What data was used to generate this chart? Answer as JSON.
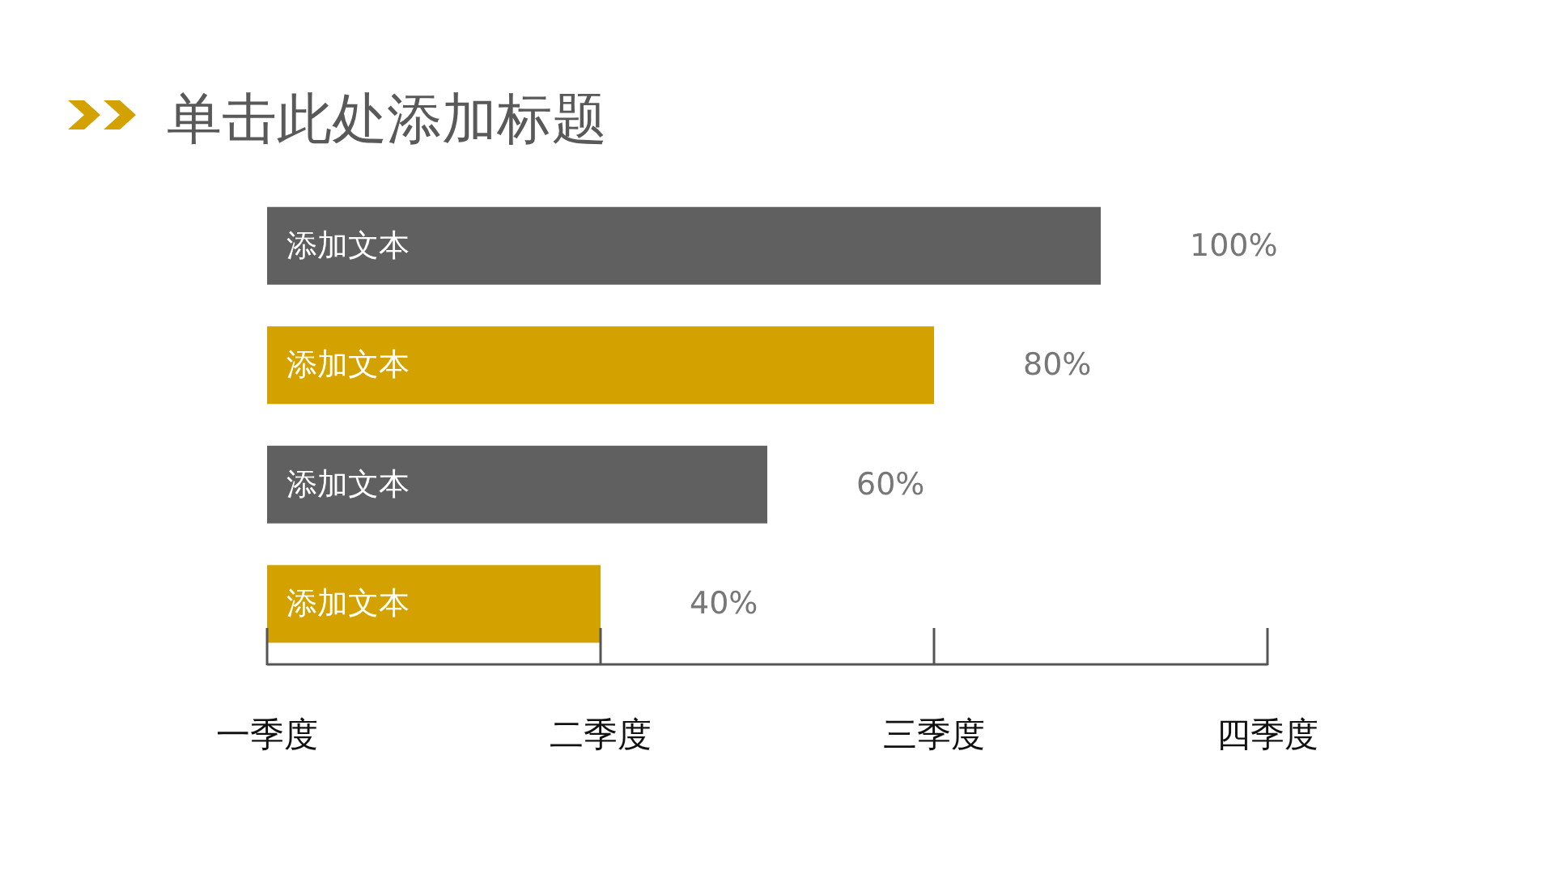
{
  "chart_data": {
    "type": "bar",
    "orientation": "horizontal",
    "title": "单击此处添加标题",
    "categories": [
      "添加文本",
      "添加文本",
      "添加文本",
      "添加文本"
    ],
    "values": [
      100,
      80,
      60,
      40
    ],
    "colors": [
      "#606060",
      "#d4a200",
      "#606060",
      "#d4a200"
    ],
    "value_labels": [
      "100%",
      "80%",
      "60%",
      "40%"
    ],
    "annotations": [
      "一季度",
      "二季度",
      "三季度",
      "四季度"
    ]
  }
}
